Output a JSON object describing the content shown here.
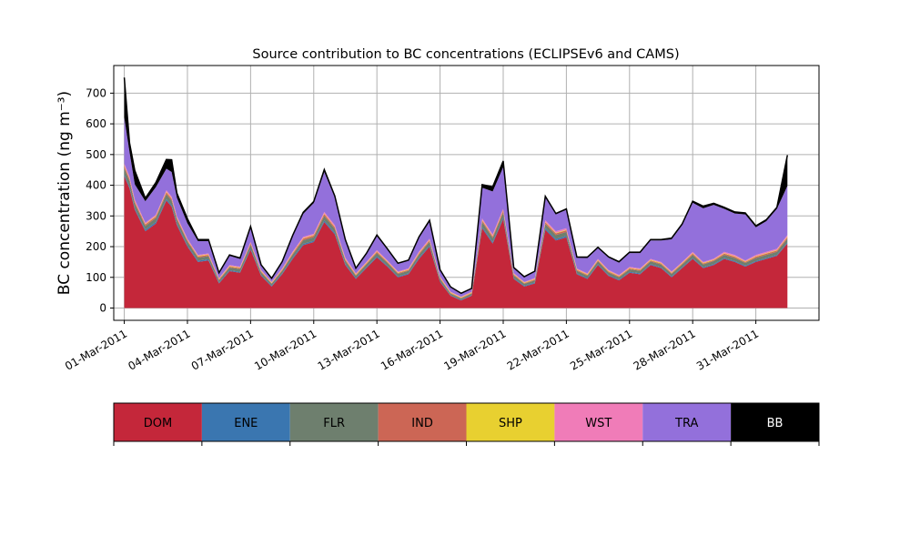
{
  "chart_data": {
    "type": "area",
    "stacked": true,
    "title": "Source contribution to BC concentrations (ECLIPSEv6 and CAMS)",
    "ylabel": "BC concentration (ng m⁻³)",
    "xlabel": "",
    "ylim": [
      -40,
      790
    ],
    "yticks": [
      0,
      100,
      200,
      300,
      400,
      500,
      600,
      700
    ],
    "xlim": [
      "2011-02-28T12:00",
      "2011-04-03T00:00"
    ],
    "xticks": [
      {
        "date": "2011-03-01",
        "label": "01-Mar-2011"
      },
      {
        "date": "2011-03-04",
        "label": "04-Mar-2011"
      },
      {
        "date": "2011-03-07",
        "label": "07-Mar-2011"
      },
      {
        "date": "2011-03-10",
        "label": "10-Mar-2011"
      },
      {
        "date": "2011-03-13",
        "label": "13-Mar-2011"
      },
      {
        "date": "2011-03-16",
        "label": "16-Mar-2011"
      },
      {
        "date": "2011-03-19",
        "label": "19-Mar-2011"
      },
      {
        "date": "2011-03-22",
        "label": "22-Mar-2011"
      },
      {
        "date": "2011-03-25",
        "label": "25-Mar-2011"
      },
      {
        "date": "2011-03-28",
        "label": "28-Mar-2011"
      },
      {
        "date": "2011-03-31",
        "label": "31-Mar-2011"
      }
    ],
    "grid": true,
    "legend": "bottom color bar",
    "x": [
      "2011-03-01T00:00",
      "2011-03-01T06:00",
      "2011-03-01T12:00",
      "2011-03-02T00:00",
      "2011-03-02T12:00",
      "2011-03-03T00:00",
      "2011-03-03T06:00",
      "2011-03-03T12:00",
      "2011-03-04T00:00",
      "2011-03-04T12:00",
      "2011-03-05T00:00",
      "2011-03-05T12:00",
      "2011-03-06T00:00",
      "2011-03-06T12:00",
      "2011-03-07T00:00",
      "2011-03-07T12:00",
      "2011-03-08T00:00",
      "2011-03-08T12:00",
      "2011-03-09T00:00",
      "2011-03-09T12:00",
      "2011-03-10T00:00",
      "2011-03-10T12:00",
      "2011-03-11T00:00",
      "2011-03-11T12:00",
      "2011-03-12T00:00",
      "2011-03-12T12:00",
      "2011-03-13T00:00",
      "2011-03-13T12:00",
      "2011-03-14T00:00",
      "2011-03-14T12:00",
      "2011-03-15T00:00",
      "2011-03-15T12:00",
      "2011-03-16T00:00",
      "2011-03-16T12:00",
      "2011-03-17T00:00",
      "2011-03-17T12:00",
      "2011-03-18T00:00",
      "2011-03-18T12:00",
      "2011-03-19T00:00",
      "2011-03-19T12:00",
      "2011-03-20T00:00",
      "2011-03-20T12:00",
      "2011-03-21T00:00",
      "2011-03-21T12:00",
      "2011-03-22T00:00",
      "2011-03-22T12:00",
      "2011-03-23T00:00",
      "2011-03-23T12:00",
      "2011-03-24T00:00",
      "2011-03-24T12:00",
      "2011-03-25T00:00",
      "2011-03-25T12:00",
      "2011-03-26T00:00",
      "2011-03-26T12:00",
      "2011-03-27T00:00",
      "2011-03-27T12:00",
      "2011-03-28T00:00",
      "2011-03-28T12:00",
      "2011-03-29T00:00",
      "2011-03-29T12:00",
      "2011-03-30T00:00",
      "2011-03-30T12:00",
      "2011-03-31T00:00",
      "2011-03-31T12:00",
      "2011-04-01T00:00",
      "2011-04-01T12:00"
    ],
    "series": [
      {
        "name": "DOM",
        "color": "#c4273a",
        "values": [
          430,
          390,
          320,
          250,
          275,
          350,
          330,
          270,
          200,
          150,
          155,
          80,
          120,
          115,
          190,
          105,
          70,
          110,
          160,
          205,
          215,
          280,
          240,
          140,
          95,
          130,
          165,
          135,
          100,
          110,
          160,
          200,
          85,
          40,
          25,
          40,
          260,
          210,
          290,
          95,
          70,
          80,
          255,
          220,
          230,
          110,
          95,
          140,
          105,
          90,
          115,
          110,
          140,
          130,
          100,
          130,
          160,
          130,
          140,
          160,
          150,
          135,
          150,
          160,
          170,
          210
        ]
      },
      {
        "name": "ENE",
        "color": "#3a76b0",
        "values": [
          5,
          5,
          5,
          5,
          5,
          5,
          5,
          5,
          4,
          4,
          4,
          3,
          3,
          3,
          4,
          3,
          3,
          3,
          4,
          4,
          4,
          5,
          5,
          4,
          3,
          3,
          4,
          3,
          3,
          3,
          4,
          4,
          3,
          2,
          2,
          2,
          5,
          5,
          5,
          3,
          3,
          3,
          5,
          5,
          5,
          3,
          3,
          3,
          3,
          3,
          3,
          3,
          3,
          3,
          3,
          3,
          3,
          3,
          3,
          3,
          3,
          3,
          3,
          3,
          3,
          4
        ]
      },
      {
        "name": "FLR",
        "color": "#6e7f6e",
        "values": [
          20,
          18,
          15,
          12,
          13,
          16,
          15,
          13,
          12,
          10,
          10,
          7,
          9,
          9,
          12,
          8,
          6,
          8,
          10,
          12,
          12,
          15,
          13,
          10,
          7,
          9,
          10,
          9,
          8,
          8,
          10,
          12,
          7,
          5,
          4,
          5,
          15,
          13,
          16,
          8,
          6,
          7,
          14,
          13,
          13,
          8,
          7,
          9,
          8,
          7,
          8,
          8,
          9,
          9,
          8,
          9,
          10,
          9,
          10,
          10,
          10,
          9,
          10,
          10,
          10,
          12
        ]
      },
      {
        "name": "IND",
        "color": "#cc6655",
        "values": [
          8,
          7,
          6,
          5,
          5,
          6,
          6,
          5,
          4,
          4,
          4,
          3,
          3,
          3,
          4,
          3,
          2,
          3,
          4,
          5,
          5,
          6,
          5,
          4,
          3,
          3,
          4,
          3,
          3,
          3,
          4,
          4,
          3,
          2,
          2,
          2,
          5,
          5,
          6,
          3,
          2,
          3,
          5,
          5,
          5,
          3,
          3,
          3,
          3,
          3,
          3,
          3,
          3,
          3,
          3,
          3,
          4,
          3,
          3,
          4,
          4,
          3,
          4,
          4,
          4,
          5
        ]
      },
      {
        "name": "SHP",
        "color": "#e8d030",
        "values": [
          2,
          2,
          2,
          2,
          2,
          2,
          2,
          2,
          2,
          2,
          2,
          2,
          2,
          2,
          2,
          2,
          2,
          2,
          2,
          2,
          2,
          2,
          2,
          2,
          2,
          2,
          2,
          2,
          2,
          2,
          2,
          2,
          2,
          2,
          2,
          2,
          2,
          2,
          2,
          2,
          2,
          2,
          2,
          2,
          2,
          2,
          2,
          2,
          2,
          2,
          2,
          2,
          2,
          2,
          2,
          2,
          2,
          2,
          2,
          2,
          2,
          2,
          2,
          2,
          2,
          2
        ]
      },
      {
        "name": "WST",
        "color": "#f07cb8",
        "values": [
          6,
          6,
          5,
          4,
          4,
          5,
          5,
          4,
          4,
          3,
          3,
          3,
          3,
          3,
          4,
          3,
          2,
          3,
          4,
          4,
          4,
          5,
          5,
          4,
          3,
          3,
          4,
          3,
          3,
          3,
          4,
          4,
          3,
          2,
          2,
          2,
          5,
          5,
          5,
          3,
          2,
          3,
          5,
          5,
          5,
          3,
          3,
          3,
          3,
          3,
          3,
          3,
          3,
          3,
          3,
          3,
          4,
          3,
          3,
          4,
          4,
          3,
          4,
          4,
          4,
          5
        ]
      },
      {
        "name": "TRA",
        "color": "#9370db",
        "values": [
          150,
          80,
          50,
          70,
          90,
          70,
          80,
          60,
          50,
          45,
          40,
          15,
          30,
          25,
          45,
          15,
          10,
          20,
          50,
          75,
          100,
          130,
          90,
          55,
          15,
          25,
          45,
          35,
          25,
          25,
          45,
          55,
          20,
          15,
          10,
          10,
          100,
          140,
          135,
          15,
          15,
          20,
          75,
          55,
          60,
          35,
          50,
          35,
          40,
          40,
          45,
          50,
          60,
          70,
          105,
          120,
          160,
          175,
          175,
          140,
          135,
          150,
          90,
          100,
          130,
          160
        ]
      },
      {
        "name": "BB",
        "color": "#000000",
        "values": [
          130,
          30,
          45,
          10,
          15,
          30,
          40,
          15,
          15,
          5,
          5,
          2,
          3,
          3,
          5,
          2,
          2,
          2,
          3,
          5,
          5,
          8,
          5,
          4,
          2,
          3,
          4,
          3,
          2,
          2,
          3,
          5,
          2,
          1,
          1,
          1,
          10,
          15,
          20,
          3,
          2,
          2,
          3,
          3,
          3,
          2,
          3,
          3,
          3,
          3,
          3,
          3,
          3,
          3,
          4,
          4,
          5,
          7,
          5,
          5,
          5,
          5,
          5,
          5,
          5,
          100
        ]
      }
    ],
    "legend_labels": [
      "DOM",
      "ENE",
      "FLR",
      "IND",
      "SHP",
      "WST",
      "TRA",
      "BB"
    ]
  }
}
